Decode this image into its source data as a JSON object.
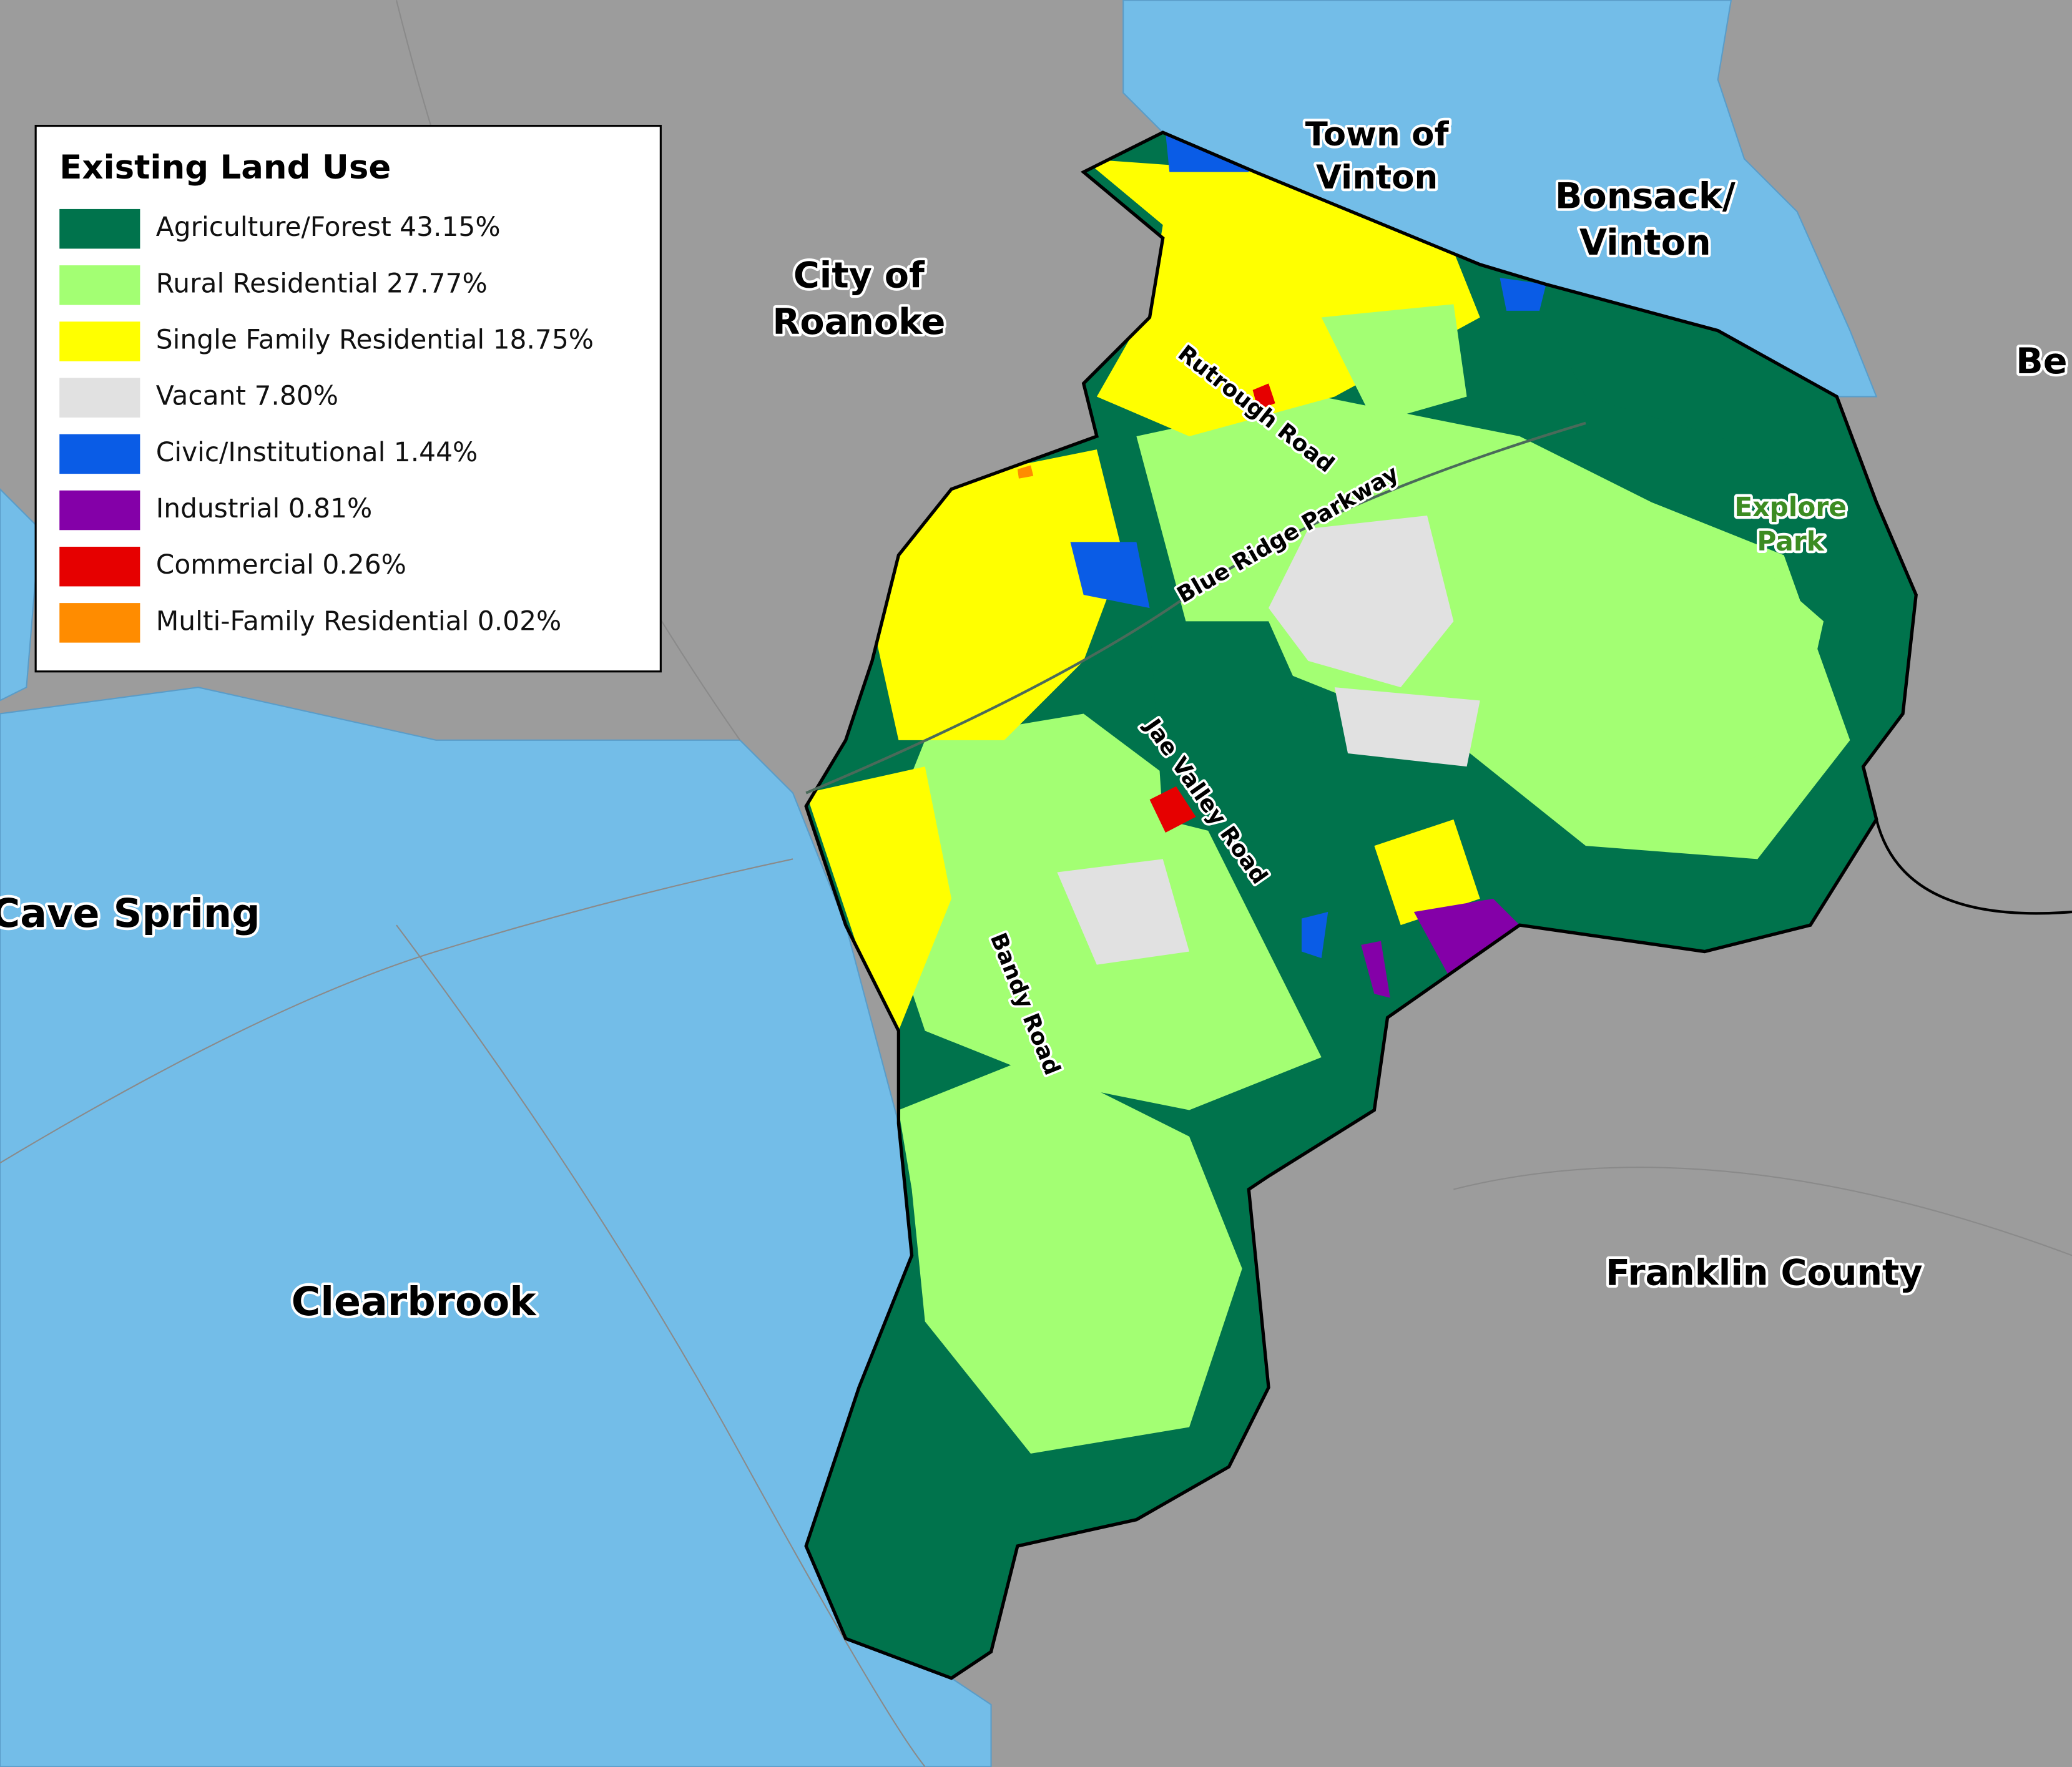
{
  "legend": {
    "title": "Existing Land Use",
    "items": [
      {
        "label": "Agriculture/Forest 43.15%",
        "color": "#00734c"
      },
      {
        "label": "Rural Residential 27.77%",
        "color": "#a3ff73"
      },
      {
        "label": "Single Family Residential 18.75%",
        "color": "#ffff00"
      },
      {
        "label": "Vacant 7.80%",
        "color": "#e1e1e1"
      },
      {
        "label": "Civic/Institutional 1.44%",
        "color": "#0a5ce6"
      },
      {
        "label": "Industrial 0.81%",
        "color": "#8400a8"
      },
      {
        "label": "Commercial 0.26%",
        "color": "#e60000"
      },
      {
        "label": "Multi-Family Residential 0.02%",
        "color": "#ff8c00"
      }
    ]
  },
  "places": [
    {
      "lines": [
        "Town of",
        "Vinton"
      ]
    },
    {
      "lines": [
        "Bonsack/",
        "Vinton"
      ]
    },
    {
      "lines": [
        "City of",
        "Roanoke"
      ]
    },
    {
      "lines": [
        "Cave Spring"
      ]
    },
    {
      "lines": [
        "Clearbrook"
      ]
    },
    {
      "lines": [
        "Franklin County"
      ]
    },
    {
      "lines": [
        "Be"
      ]
    },
    {
      "lines": [
        "Explore",
        "Park"
      ]
    }
  ],
  "roads": [
    "Rutrough Road",
    "Blue Ridge Parkway",
    "Jae Valley Road",
    "Bandy Road"
  ]
}
